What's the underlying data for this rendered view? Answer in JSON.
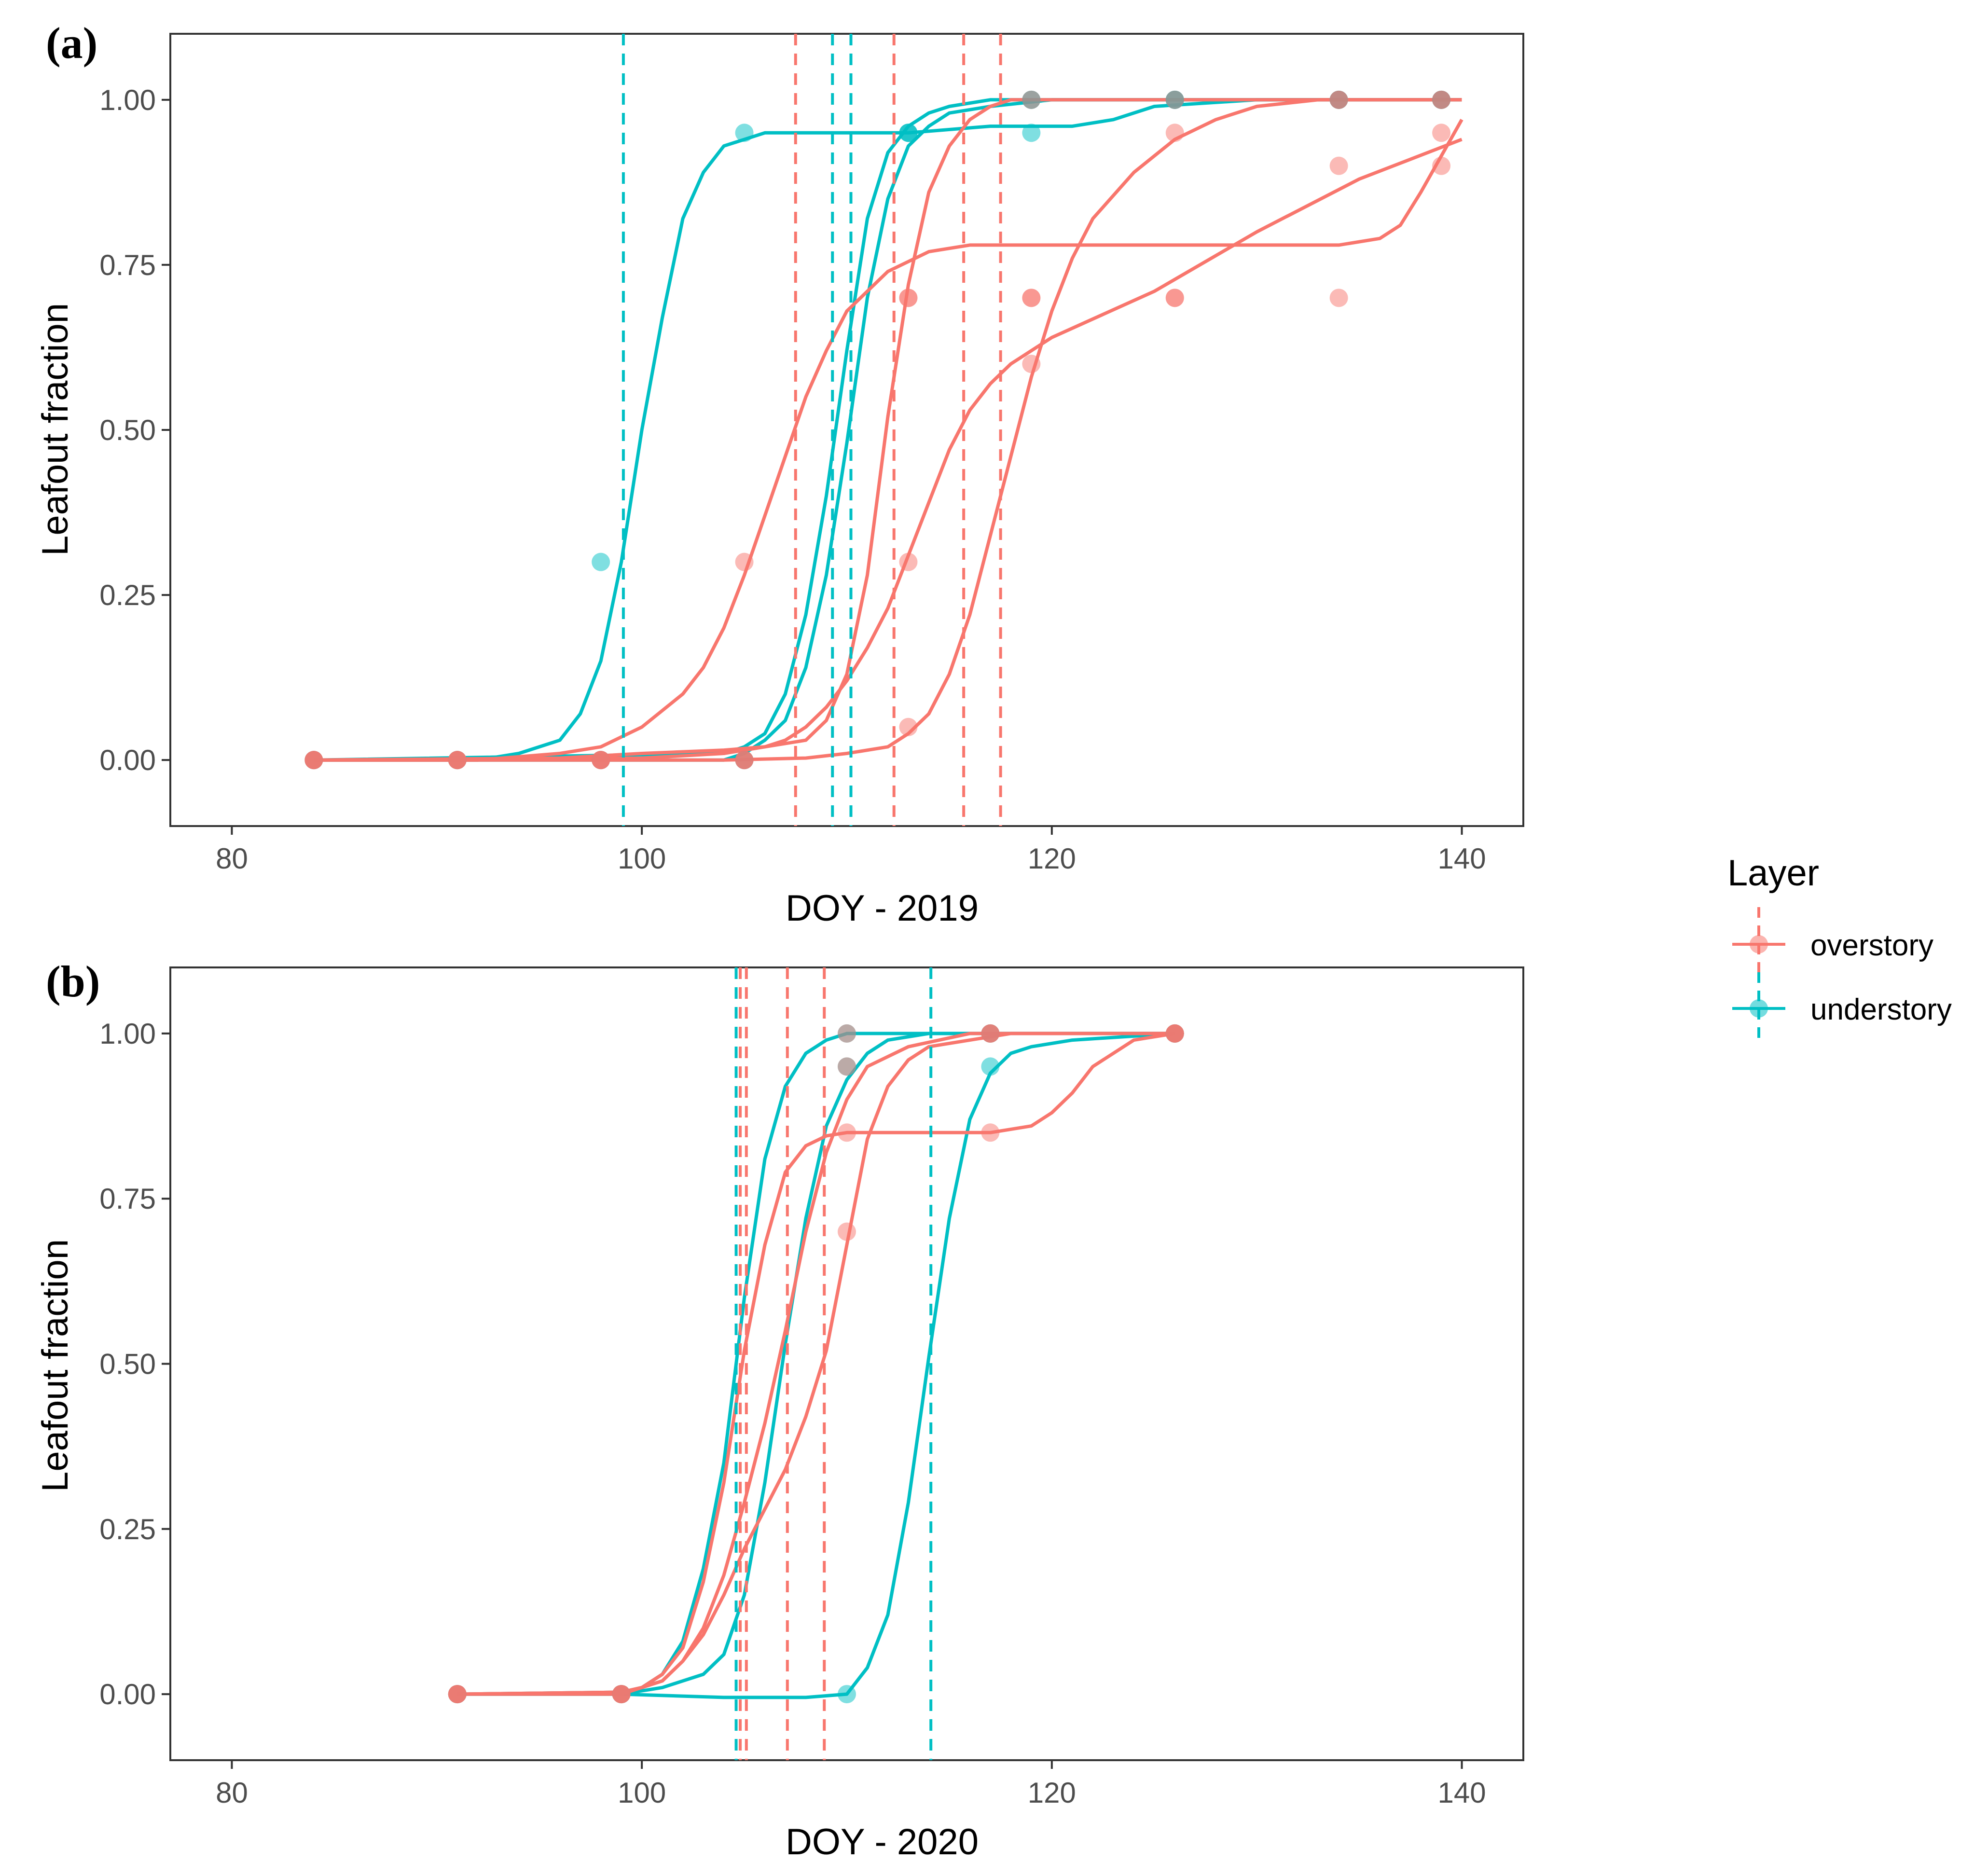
{
  "colors": {
    "overstory": "#F8766D",
    "understory": "#00BFC4",
    "frame": "#333333",
    "tick_text": "#4D4D4D"
  },
  "legend": {
    "title": "Layer",
    "placement": "right-center",
    "items": [
      {
        "label": "overstory",
        "color": "#F8766D"
      },
      {
        "label": "understory",
        "color": "#00BFC4"
      }
    ]
  },
  "chart_data": [
    {
      "type": "scatter",
      "tag": "(a)",
      "xlabel": "DOY - 2019",
      "ylabel": "Leafout fraction",
      "xlim": [
        77,
        143
      ],
      "ylim": [
        -0.1,
        1.1
      ],
      "x_ticks": [
        80,
        100,
        120,
        140
      ],
      "y_ticks": [
        0,
        0.25,
        0.5,
        0.75,
        1
      ],
      "y_tick_labels": [
        "0.00",
        "0.25",
        "0.50",
        "0.75",
        "1.00"
      ],
      "grid": false,
      "vlines": [
        {
          "layer": "understory",
          "x": 99.1
        },
        {
          "layer": "overstory",
          "x": 107.5
        },
        {
          "layer": "understory",
          "x": 109.3
        },
        {
          "layer": "understory",
          "x": 110.2
        },
        {
          "layer": "overstory",
          "x": 112.3
        },
        {
          "layer": "overstory",
          "x": 115.7
        },
        {
          "layer": "overstory",
          "x": 117.5
        }
      ],
      "series": [
        {
          "layer": "understory",
          "x": [
            84,
            91,
            98,
            105,
            113,
            119,
            126,
            134,
            139
          ],
          "y": [
            0,
            0,
            0.3,
            0.95,
            0.95,
            0.95,
            1,
            1,
            1
          ]
        },
        {
          "layer": "understory",
          "x": [
            84,
            91,
            98,
            105,
            113,
            119,
            126,
            134,
            139
          ],
          "y": [
            0,
            0,
            0,
            0,
            0.95,
            1,
            1,
            1,
            1
          ]
        },
        {
          "layer": "understory",
          "x": [
            84,
            91,
            98,
            105,
            113,
            119,
            126,
            134,
            139
          ],
          "y": [
            0,
            0,
            0,
            0,
            0.95,
            1,
            1,
            1,
            1
          ]
        },
        {
          "layer": "overstory",
          "x": [
            84,
            91,
            98,
            105,
            113,
            119,
            126,
            134,
            139
          ],
          "y": [
            0,
            0,
            0,
            0.3,
            0.7,
            0.7,
            0.7,
            0.7,
            0.95
          ]
        },
        {
          "layer": "overstory",
          "x": [
            84,
            91,
            98,
            105,
            113,
            119,
            126,
            134,
            139
          ],
          "y": [
            0,
            0,
            0,
            0,
            0.7,
            1,
            1,
            1,
            1
          ]
        },
        {
          "layer": "overstory",
          "x": [
            84,
            91,
            98,
            105,
            113,
            119,
            126,
            134,
            139
          ],
          "y": [
            0,
            0,
            0,
            0,
            0.3,
            0.6,
            0.7,
            0.9,
            0.9
          ]
        },
        {
          "layer": "overstory",
          "x": [
            84,
            91,
            98,
            105,
            113,
            119,
            126,
            134,
            139
          ],
          "y": [
            0,
            0,
            0,
            0,
            0.05,
            0.7,
            0.95,
            1,
            1
          ]
        }
      ],
      "curves": [
        {
          "layer": "understory",
          "x": [
            84,
            92,
            94,
            96,
            97,
            98,
            99,
            100,
            101,
            102,
            103,
            104,
            106,
            110,
            113,
            117,
            118,
            121,
            123,
            125,
            130,
            140
          ],
          "y": [
            0,
            0,
            0.01,
            0.03,
            0.07,
            0.15,
            0.3,
            0.5,
            0.67,
            0.82,
            0.89,
            0.93,
            0.95,
            0.95,
            0.95,
            0.96,
            0.96,
            0.96,
            0.97,
            0.99,
            1,
            1
          ]
        },
        {
          "layer": "understory",
          "x": [
            84,
            104,
            105,
            106,
            107,
            108,
            109,
            110,
            111,
            112,
            113,
            114,
            115,
            117,
            118,
            140
          ],
          "y": [
            0,
            0.01,
            0.02,
            0.04,
            0.1,
            0.22,
            0.4,
            0.62,
            0.82,
            0.92,
            0.96,
            0.98,
            0.99,
            1,
            1,
            1
          ]
        },
        {
          "layer": "understory",
          "x": [
            84,
            104,
            105,
            106,
            107,
            108,
            109,
            110,
            111,
            112,
            113,
            114,
            115,
            117,
            120,
            140
          ],
          "y": [
            0,
            0,
            0.01,
            0.03,
            0.06,
            0.14,
            0.28,
            0.48,
            0.7,
            0.85,
            0.93,
            0.96,
            0.98,
            0.99,
            1,
            1
          ]
        },
        {
          "layer": "overstory",
          "x": [
            84,
            92,
            96,
            98,
            100,
            102,
            103,
            104,
            105,
            106,
            107,
            108,
            109,
            110,
            112,
            114,
            116,
            118,
            120,
            126,
            134,
            136,
            137,
            138,
            140
          ],
          "y": [
            0,
            0,
            0.01,
            0.02,
            0.05,
            0.1,
            0.14,
            0.2,
            0.28,
            0.37,
            0.46,
            0.55,
            0.62,
            0.68,
            0.74,
            0.77,
            0.78,
            0.78,
            0.78,
            0.78,
            0.78,
            0.79,
            0.81,
            0.86,
            0.97
          ]
        },
        {
          "layer": "overstory",
          "x": [
            84,
            96,
            100,
            104,
            106,
            108,
            109,
            110,
            111,
            112,
            113,
            114,
            115,
            116,
            117,
            118,
            120,
            140
          ],
          "y": [
            0,
            0.003,
            0.01,
            0.015,
            0.02,
            0.03,
            0.06,
            0.13,
            0.28,
            0.52,
            0.72,
            0.86,
            0.93,
            0.97,
            0.99,
            1,
            1,
            1
          ]
        },
        {
          "layer": "overstory",
          "x": [
            84,
            100,
            104,
            106,
            107,
            108,
            109,
            110,
            111,
            112,
            113,
            114,
            115,
            116,
            117,
            118,
            120,
            125,
            130,
            135,
            140
          ],
          "y": [
            0,
            0.003,
            0.01,
            0.02,
            0.03,
            0.05,
            0.08,
            0.12,
            0.17,
            0.23,
            0.31,
            0.39,
            0.47,
            0.53,
            0.57,
            0.6,
            0.64,
            0.71,
            0.8,
            0.88,
            0.94
          ]
        },
        {
          "layer": "overstory",
          "x": [
            84,
            104,
            108,
            110,
            112,
            113,
            114,
            115,
            116,
            117,
            118,
            119,
            120,
            121,
            122,
            124,
            126,
            128,
            130,
            133,
            140
          ],
          "y": [
            0,
            0,
            0.003,
            0.01,
            0.02,
            0.04,
            0.07,
            0.13,
            0.22,
            0.34,
            0.46,
            0.58,
            0.68,
            0.76,
            0.82,
            0.89,
            0.94,
            0.97,
            0.99,
            1,
            1
          ]
        }
      ]
    },
    {
      "type": "scatter",
      "tag": "(b)",
      "xlabel": "DOY - 2020",
      "ylabel": "Leafout fraction",
      "xlim": [
        77,
        143
      ],
      "ylim": [
        -0.1,
        1.1
      ],
      "x_ticks": [
        80,
        100,
        120,
        140
      ],
      "y_ticks": [
        0,
        0.25,
        0.5,
        0.75,
        1
      ],
      "y_tick_labels": [
        "0.00",
        "0.25",
        "0.50",
        "0.75",
        "1.00"
      ],
      "grid": false,
      "vlines": [
        {
          "layer": "understory",
          "x": 104.6
        },
        {
          "layer": "overstory",
          "x": 104.8
        },
        {
          "layer": "overstory",
          "x": 105.1
        },
        {
          "layer": "overstory",
          "x": 107.1
        },
        {
          "layer": "overstory",
          "x": 108.9
        },
        {
          "layer": "understory",
          "x": 114.1
        }
      ],
      "series": [
        {
          "layer": "understory",
          "x": [
            91,
            99,
            110,
            117,
            126
          ],
          "y": [
            0,
            0,
            1,
            1,
            1
          ]
        },
        {
          "layer": "understory",
          "x": [
            91,
            99,
            110,
            117,
            126
          ],
          "y": [
            0,
            0,
            0.95,
            1,
            1
          ]
        },
        {
          "layer": "understory",
          "x": [
            91,
            99,
            110,
            117,
            126
          ],
          "y": [
            0,
            0,
            0,
            0.95,
            1
          ]
        },
        {
          "layer": "overstory",
          "x": [
            91,
            99,
            110,
            117,
            126
          ],
          "y": [
            0,
            0,
            1,
            1,
            1
          ]
        },
        {
          "layer": "overstory",
          "x": [
            91,
            99,
            110,
            117,
            126
          ],
          "y": [
            0,
            0,
            0.95,
            1,
            1
          ]
        },
        {
          "layer": "overstory",
          "x": [
            91,
            99,
            110,
            117,
            126
          ],
          "y": [
            0,
            0,
            0.85,
            0.85,
            1
          ]
        },
        {
          "layer": "overstory",
          "x": [
            91,
            99,
            110,
            117,
            126
          ],
          "y": [
            0,
            0,
            0.7,
            1,
            1
          ]
        }
      ],
      "curves": [
        {
          "layer": "understory",
          "x": [
            91,
            99,
            100,
            101,
            102,
            103,
            104,
            105,
            106,
            107,
            108,
            109,
            110,
            112,
            126
          ],
          "y": [
            0,
            0.003,
            0.01,
            0.03,
            0.08,
            0.19,
            0.35,
            0.6,
            0.81,
            0.92,
            0.97,
            0.99,
            1,
            1,
            1
          ]
        },
        {
          "layer": "understory",
          "x": [
            91,
            99,
            101,
            102,
            103,
            104,
            105,
            106,
            107,
            108,
            109,
            110,
            111,
            112,
            114,
            126
          ],
          "y": [
            0,
            0,
            0.01,
            0.02,
            0.03,
            0.06,
            0.15,
            0.32,
            0.53,
            0.72,
            0.86,
            0.93,
            0.97,
            0.99,
            1,
            1
          ]
        },
        {
          "layer": "understory",
          "x": [
            91,
            99,
            104,
            108,
            110,
            111,
            112,
            113,
            114,
            115,
            116,
            117,
            118,
            119,
            121,
            126
          ],
          "y": [
            0,
            0,
            -0.005,
            -0.005,
            0,
            0.04,
            0.12,
            0.29,
            0.51,
            0.72,
            0.87,
            0.94,
            0.97,
            0.98,
            0.99,
            1
          ]
        },
        {
          "layer": "overstory",
          "x": [
            91,
            99,
            100,
            101,
            102,
            103,
            104,
            105,
            106,
            107,
            108,
            109,
            110,
            112,
            113,
            115,
            117,
            119,
            120,
            121,
            122,
            124,
            126
          ],
          "y": [
            0,
            0.003,
            0.01,
            0.03,
            0.07,
            0.17,
            0.32,
            0.52,
            0.68,
            0.79,
            0.83,
            0.845,
            0.85,
            0.85,
            0.85,
            0.85,
            0.85,
            0.86,
            0.88,
            0.91,
            0.95,
            0.99,
            1
          ]
        },
        {
          "layer": "overstory",
          "x": [
            91,
            99,
            100,
            101,
            102,
            103,
            104,
            105,
            106,
            107,
            108,
            109,
            110,
            111,
            113,
            116,
            126
          ],
          "y": [
            0,
            0.003,
            0.01,
            0.02,
            0.05,
            0.1,
            0.18,
            0.29,
            0.41,
            0.55,
            0.7,
            0.82,
            0.9,
            0.95,
            0.98,
            1,
            1
          ]
        },
        {
          "layer": "overstory",
          "x": [
            91,
            99,
            101,
            102,
            103,
            104,
            105,
            106,
            107,
            108,
            109,
            110,
            111,
            112,
            113,
            114,
            116,
            118,
            126
          ],
          "y": [
            0,
            0,
            0.02,
            0.05,
            0.09,
            0.15,
            0.22,
            0.28,
            0.34,
            0.42,
            0.52,
            0.68,
            0.84,
            0.92,
            0.96,
            0.98,
            0.99,
            1,
            1
          ]
        }
      ]
    }
  ]
}
